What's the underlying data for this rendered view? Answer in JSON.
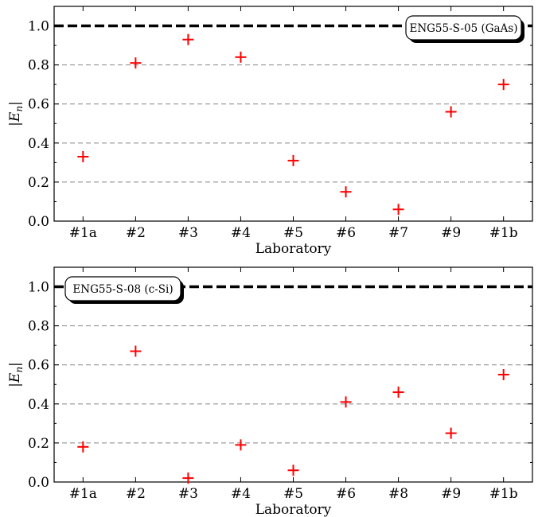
{
  "chart_data": [
    {
      "type": "scatter",
      "legend_label": "ENG55-S-05 (GaAs)",
      "legend_position": "top-right",
      "xlabel": "Laboratory",
      "ylabel": "|E",
      "ylabel_sub": "n",
      "ylabel_suffix": "|",
      "ylim": [
        0,
        1.1
      ],
      "yticks": [
        "0.0",
        "0.2",
        "0.4",
        "0.6",
        "0.8",
        "1.0"
      ],
      "ytick_values": [
        0,
        0.2,
        0.4,
        0.6,
        0.8,
        1.0
      ],
      "categories": [
        "#1a",
        "#2",
        "#3",
        "#4",
        "#5",
        "#6",
        "#7",
        "#9",
        "#1b"
      ],
      "values": [
        0.33,
        0.81,
        0.93,
        0.84,
        0.31,
        0.15,
        0.06,
        0.56,
        0.7
      ],
      "reference_line": 1.0,
      "grid": "horizontal dashed",
      "marker": "plus",
      "marker_color": "#ff0000"
    },
    {
      "type": "scatter",
      "legend_label": "ENG55-S-08 (c-Si)",
      "legend_position": "top-left",
      "xlabel": "Laboratory",
      "ylabel": "|E",
      "ylabel_sub": "n",
      "ylabel_suffix": "|",
      "ylim": [
        0,
        1.1
      ],
      "yticks": [
        "0.0",
        "0.2",
        "0.4",
        "0.6",
        "0.8",
        "1.0"
      ],
      "ytick_values": [
        0,
        0.2,
        0.4,
        0.6,
        0.8,
        1.0
      ],
      "categories": [
        "#1a",
        "#2",
        "#3",
        "#4",
        "#5",
        "#6",
        "#8",
        "#9",
        "#1b"
      ],
      "values": [
        0.18,
        0.67,
        0.02,
        0.19,
        0.06,
        0.41,
        0.46,
        0.25,
        0.55
      ],
      "reference_line": 1.0,
      "grid": "horizontal dashed",
      "marker": "plus",
      "marker_color": "#ff0000"
    }
  ]
}
